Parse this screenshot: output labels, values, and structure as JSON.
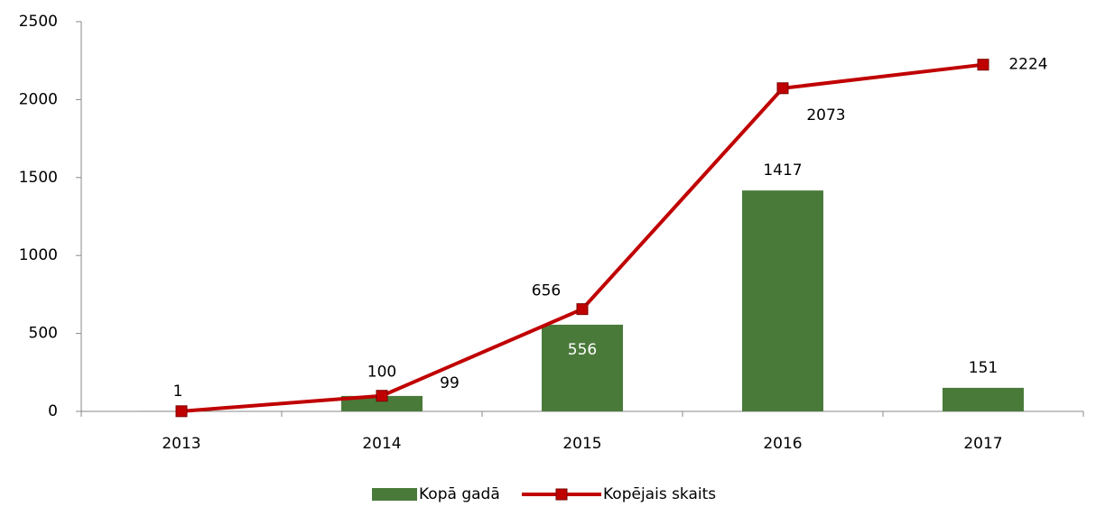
{
  "chart_data": {
    "type": "bar-line",
    "categories": [
      "2013",
      "2014",
      "2015",
      "2016",
      "2017"
    ],
    "series": [
      {
        "name": "Kopā gadā",
        "type": "bar",
        "color": "#4a7a3a",
        "values": [
          1,
          99,
          556,
          1417,
          151
        ],
        "value_labels": [
          null,
          "99",
          "556",
          "1417",
          "151"
        ]
      },
      {
        "name": "Kopējais skaits",
        "type": "line",
        "color": "#c00000",
        "values": [
          1,
          100,
          656,
          2073,
          2224
        ]
      }
    ],
    "ylim": [
      0,
      2500
    ],
    "yticks": [
      0,
      500,
      1000,
      1500,
      2000,
      2500
    ],
    "grid": false,
    "legend": "bottom"
  }
}
